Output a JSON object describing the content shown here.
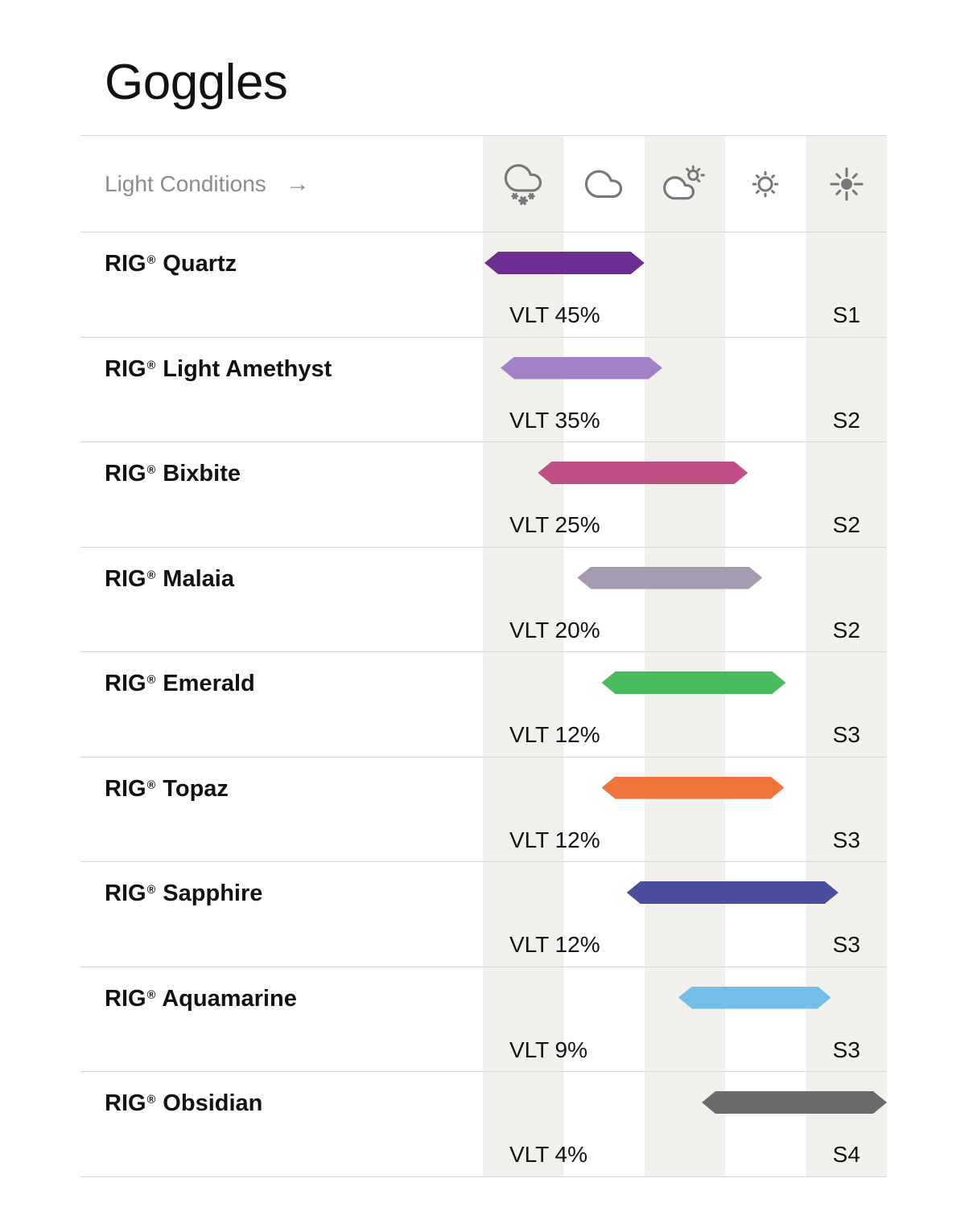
{
  "page_title": "Goggles",
  "header": {
    "label": "Light Conditions",
    "arrow": "→",
    "light_condition_icons": [
      "snow-cloud-icon",
      "cloud-icon",
      "sun-behind-cloud-icon",
      "sun-icon",
      "bright-sun-icon"
    ]
  },
  "chart_data": {
    "type": "bar",
    "title": "Goggles",
    "x_axis_label": "Light Conditions",
    "x_categories": [
      "snow",
      "cloudy",
      "partly-sunny",
      "sunny",
      "bright-sun"
    ],
    "x_range_columns": [
      0,
      5
    ],
    "legend": "none",
    "rows": [
      {
        "name": "RIG® Quartz",
        "vlt_label": "VLT 45%",
        "vlt_percent": 45,
        "s_rating": "S1",
        "bar_color": "#6c2e90",
        "light_span_cols": [
          0.02,
          2.0
        ]
      },
      {
        "name": "RIG® Light Amethyst",
        "vlt_label": "VLT 35%",
        "vlt_percent": 35,
        "s_rating": "S2",
        "bar_color": "#a381c7",
        "light_span_cols": [
          0.22,
          2.22
        ]
      },
      {
        "name": "RIG® Bixbite",
        "vlt_label": "VLT 25%",
        "vlt_percent": 25,
        "s_rating": "S2",
        "bar_color": "#c14f84",
        "light_span_cols": [
          0.68,
          3.28
        ]
      },
      {
        "name": "RIG® Malaia",
        "vlt_label": "VLT 20%",
        "vlt_percent": 20,
        "s_rating": "S2",
        "bar_color": "#a59aaf",
        "light_span_cols": [
          1.17,
          3.46
        ]
      },
      {
        "name": "RIG® Emerald",
        "vlt_label": "VLT 12%",
        "vlt_percent": 12,
        "s_rating": "S3",
        "bar_color": "#48bc5d",
        "light_span_cols": [
          1.47,
          3.75
        ]
      },
      {
        "name": "RIG® Topaz",
        "vlt_label": "VLT 12%",
        "vlt_percent": 12,
        "s_rating": "S3",
        "bar_color": "#f0753d",
        "light_span_cols": [
          1.47,
          3.73
        ]
      },
      {
        "name": "RIG® Sapphire",
        "vlt_label": "VLT 12%",
        "vlt_percent": 12,
        "s_rating": "S3",
        "bar_color": "#4b4d9e",
        "light_span_cols": [
          1.78,
          4.4
        ]
      },
      {
        "name": "RIG® Aquamarine",
        "vlt_label": "VLT 9%",
        "vlt_percent": 9,
        "s_rating": "S3",
        "bar_color": "#73bfe9",
        "light_span_cols": [
          2.42,
          4.31
        ]
      },
      {
        "name": "RIG® Obsidian",
        "vlt_label": "VLT 4%",
        "vlt_percent": 4,
        "s_rating": "S4",
        "bar_color": "#6b6b6b",
        "light_span_cols": [
          2.71,
          5.0
        ]
      }
    ]
  },
  "colors": {
    "stripe": "#f2f0ed",
    "divider": "#d7d5d2",
    "muted_text": "#8d8d8b",
    "text": "#141414",
    "icon": "#787878"
  }
}
